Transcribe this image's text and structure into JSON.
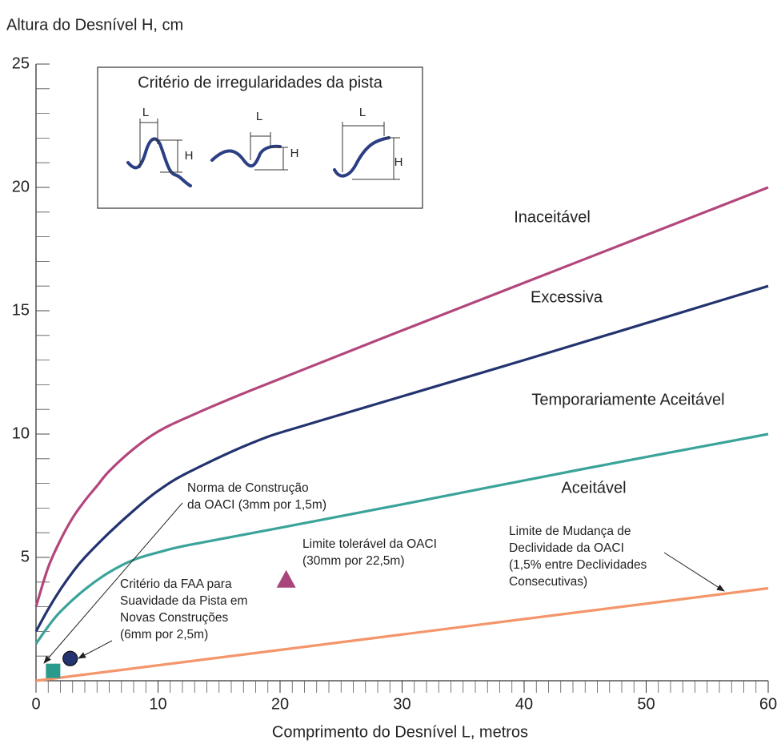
{
  "chart_data": {
    "type": "line",
    "y_label": "Altura do Desnível H, cm",
    "x_label": "Comprimento do Desnível L, metros",
    "xlim": [
      0,
      60
    ],
    "xticks": [
      0,
      10,
      20,
      30,
      40,
      50,
      60
    ],
    "ylim": [
      0,
      25
    ],
    "yticks": [
      5,
      10,
      15,
      20,
      25
    ],
    "series": [
      {
        "name": "Inaceitável",
        "color": "#b3467c",
        "x": [
          0,
          1,
          2,
          3,
          4,
          5,
          6,
          8,
          10,
          12.5,
          17.5,
          30,
          45,
          60
        ],
        "values": [
          3,
          4.6,
          5.7,
          6.6,
          7.3,
          7.9,
          8.5,
          9.4,
          10.1,
          10.7,
          11.75,
          14.2,
          17.1,
          20
        ]
      },
      {
        "name": "Excessiva",
        "color": "#23336f",
        "x": [
          0,
          1,
          2,
          3,
          4,
          6,
          8,
          10,
          12.5,
          18,
          23,
          40,
          60
        ],
        "values": [
          2,
          2.9,
          3.7,
          4.4,
          5.0,
          6.0,
          6.9,
          7.7,
          8.45,
          9.7,
          10.5,
          13.0,
          16
        ]
      },
      {
        "name": "Temporariamente Aceitável",
        "color": "#3aa39a",
        "x": [
          0,
          1,
          2,
          4,
          6,
          8,
          10,
          12.5,
          20,
          30,
          45,
          60
        ],
        "values": [
          1.5,
          2.2,
          2.8,
          3.7,
          4.4,
          4.9,
          5.2,
          5.5,
          6.2,
          7.15,
          8.6,
          10
        ]
      },
      {
        "color": "#f4956a",
        "x": [
          0,
          60
        ],
        "values": [
          0,
          3.75
        ]
      }
    ],
    "curve_note": "Aceitável",
    "markers": [
      {
        "shape": "square",
        "color": "#2a9a8c",
        "x": 1.4,
        "y": 0.4
      },
      {
        "shape": "circle",
        "color": "#23336f",
        "x": 2.8,
        "y": 0.9
      },
      {
        "shape": "triangle",
        "color": "#a8457a",
        "x": 20.5,
        "y": 4.1
      }
    ],
    "annotations": [
      {
        "lines": [
          "Norma de Construção",
          "da OACI (3mm por 1,5m)"
        ]
      },
      {
        "lines": [
          "Limite tolerável da OACI",
          "(30mm por 22,5m)"
        ]
      },
      {
        "lines": [
          "Critério da FAA para",
          "Suavidade da Pista em",
          "Novas Construções",
          "(6mm por 2,5m)"
        ]
      },
      {
        "lines": [
          "Limite de Mudança de",
          "Declividade da OACI",
          "(1,5% entre Declividades",
          "Consecutivas)"
        ]
      }
    ],
    "inset_title": "Critério de irregularidades da pista",
    "inset_labels": [
      "L",
      "H",
      "L",
      "H",
      "L",
      "H"
    ]
  }
}
